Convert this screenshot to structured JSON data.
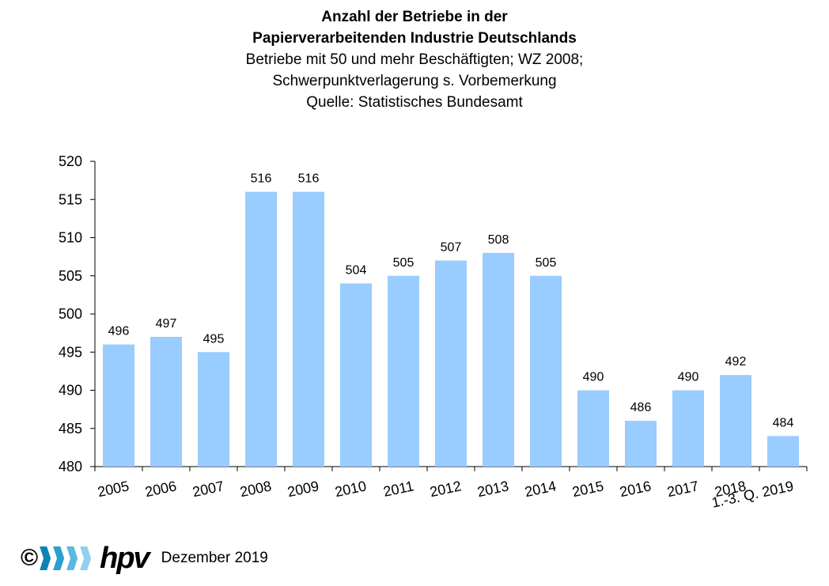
{
  "header": {
    "title_line1": "Anzahl der Betriebe in der",
    "title_line2": "Papierverarbeitenden Industrie Deutschlands",
    "subtitle_line1": "Betriebe mit 50 und mehr Beschäftigten; WZ 2008;",
    "subtitle_line2": "Schwerpunktverlagerung s. Vorbemerkung",
    "subtitle_line3": "Quelle: Statistisches Bundesamt"
  },
  "chart_data": {
    "type": "bar",
    "title": "Anzahl der Betriebe in der Papierverarbeitenden Industrie Deutschlands",
    "subtitle": "Betriebe mit 50 und mehr Beschäftigten; WZ 2008; Schwerpunktverlagerung s. Vorbemerkung; Quelle: Statistisches Bundesamt",
    "categories": [
      "2005",
      "2006",
      "2007",
      "2008",
      "2009",
      "2010",
      "2011",
      "2012",
      "2013",
      "2014",
      "2015",
      "2016",
      "2017",
      "2018",
      "1.-3. Q. 2019"
    ],
    "values": [
      496,
      497,
      495,
      516,
      516,
      504,
      505,
      507,
      508,
      505,
      490,
      486,
      490,
      492,
      484
    ],
    "value_labels": [
      "496",
      "497",
      "495",
      "516",
      "516",
      "504",
      "505",
      "507",
      "508",
      "505",
      "490",
      "486",
      "490",
      "492",
      "484"
    ],
    "yticks": [
      480,
      485,
      490,
      495,
      500,
      505,
      510,
      515,
      520
    ],
    "ylim": [
      480,
      520
    ],
    "xlabel": "",
    "ylabel": "",
    "grid": false,
    "bar_color": "#99CCFF"
  },
  "footer": {
    "copyright": "©",
    "logo_text": "hpv",
    "logo_colors": [
      "#0b84b3",
      "#2a9fd0",
      "#5bb8e0",
      "#8fd0ee"
    ],
    "date": "Dezember 2019"
  }
}
